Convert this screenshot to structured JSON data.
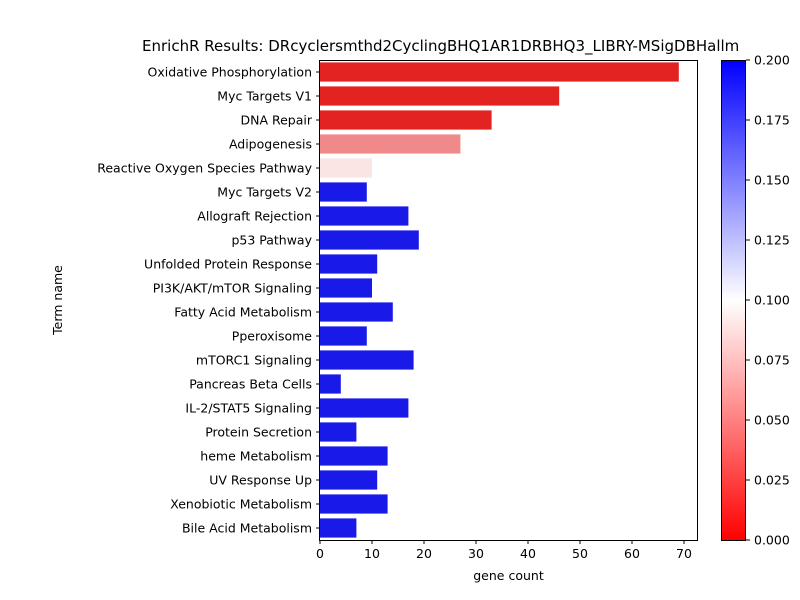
{
  "chart_data": {
    "type": "bar",
    "orientation": "horizontal",
    "title": "EnrichR Results: DRcyclersmthd2CyclingBHQ1AR1DRBHQ3_LIBRY-MSigDBHallm",
    "xlabel": "gene count",
    "ylabel": "Term name",
    "xlim": [
      0,
      72.5
    ],
    "xticks": [
      0,
      10,
      20,
      30,
      40,
      50,
      60,
      70
    ],
    "categories": [
      "Oxidative Phosphorylation",
      "Myc Targets V1",
      "DNA Repair",
      "Adipogenesis",
      "Reactive Oxygen Species Pathway",
      "Myc Targets V2",
      "Allograft Rejection",
      "p53 Pathway",
      "Unfolded Protein Response",
      "PI3K/AKT/mTOR  Signaling",
      "Fatty Acid Metabolism",
      "Pperoxisome",
      "mTORC1 Signaling",
      "Pancreas Beta Cells",
      "IL-2/STAT5 Signaling",
      "Protein Secretion",
      "heme Metabolism",
      "UV Response Up",
      "Xenobiotic Metabolism",
      "Bile Acid Metabolism"
    ],
    "values": [
      69,
      46,
      33,
      27,
      10,
      9,
      17,
      19,
      11,
      10,
      14,
      9,
      18,
      4,
      17,
      7,
      13,
      11,
      13,
      7
    ],
    "colors": [
      "#e32222",
      "#e32222",
      "#e32222",
      "#f08a8a",
      "#fbe4e4",
      "#1a1ae8",
      "#1a1ae8",
      "#1a1ae8",
      "#1a1ae8",
      "#1a1ae8",
      "#1a1ae8",
      "#1a1ae8",
      "#1a1ae8",
      "#1a1ae8",
      "#1a1ae8",
      "#1a1ae8",
      "#1a1ae8",
      "#1a1ae8",
      "#1a1ae8",
      "#1a1ae8"
    ],
    "colorbar": {
      "range": [
        0.0,
        0.2
      ],
      "ticks": [
        "0.000",
        "0.025",
        "0.050",
        "0.075",
        "0.100",
        "0.125",
        "0.150",
        "0.175",
        "0.200"
      ],
      "colormap": [
        "#ff0000",
        "#ffffff",
        "#0000ff"
      ]
    },
    "grid": false,
    "legend": "none"
  }
}
